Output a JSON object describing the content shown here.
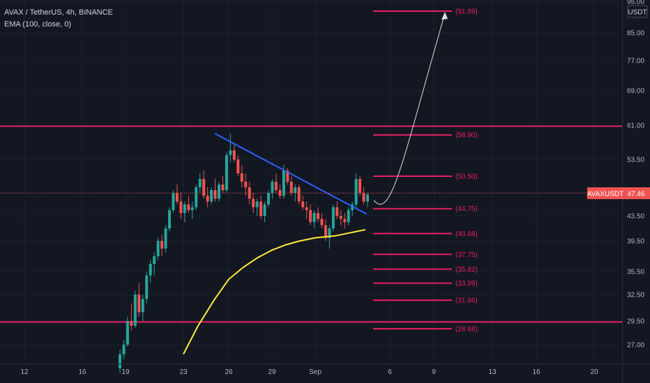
{
  "header": {
    "symbol_line": "AVAX / TetherUS, 4h, BINANCE",
    "indicator_line": "EMA (100, close, 0)"
  },
  "currency": "USDT",
  "colors": {
    "background": "#131722",
    "up": "#26a69a",
    "down": "#ef5350",
    "level": "#e91e63",
    "ema": "#ffeb3b",
    "trendline": "#2962ff",
    "text": "#b2b5be"
  },
  "chart_data": {
    "type": "candlestick",
    "symbol": "AVAXUSDT",
    "timeframe": "4h",
    "exchange": "BINANCE",
    "y_axis_ticks": [
      "95.00",
      "85.00",
      "77.00",
      "69.00",
      "61.00",
      "53.50",
      "47.50",
      "43.50",
      "39.50",
      "35.50",
      "32.50",
      "29.50",
      "27.00"
    ],
    "y_axis_values": [
      95,
      85,
      77,
      69,
      61,
      53.5,
      47.5,
      43.5,
      39.5,
      35.5,
      32.5,
      29.5,
      27
    ],
    "x_axis_ticks": [
      "12",
      "16",
      "19",
      "23",
      "26",
      "29",
      "Sep",
      "6",
      "9",
      "13",
      "16",
      "20"
    ],
    "last_price": {
      "label": "AVAXUSDT",
      "value": "47.46"
    },
    "horizontal_lines": [
      60.8,
      29.4
    ],
    "fib_levels": [
      {
        "value": 91.89,
        "label": "(91.89)"
      },
      {
        "value": 58.9,
        "label": "(58.90)"
      },
      {
        "value": 50.5,
        "label": "(50.50)"
      },
      {
        "value": 44.75,
        "label": "(44.75)"
      },
      {
        "value": 40.68,
        "label": "(40.68)"
      },
      {
        "value": 37.75,
        "label": "(37.75)"
      },
      {
        "value": 35.82,
        "label": "(35.82)"
      },
      {
        "value": 33.99,
        "label": "(33.99)"
      },
      {
        "value": 31.86,
        "label": "(31.86)"
      },
      {
        "value": 28.68,
        "label": "(28.68)"
      }
    ],
    "ema": {
      "name": "EMA (100, close, 0)",
      "points": [
        [
          "Aug 23",
          26
        ],
        [
          "Aug 24",
          29
        ],
        [
          "Aug 25",
          32
        ],
        [
          "Aug 26",
          34.5
        ],
        [
          "Aug 27",
          36
        ],
        [
          "Aug 28",
          37.3
        ],
        [
          "Aug 29",
          38.3
        ],
        [
          "Aug 30",
          39
        ],
        [
          "Aug 31",
          39.5
        ],
        [
          "Sep 1",
          40
        ],
        [
          "Sep 2",
          40.3
        ],
        [
          "Sep 3",
          41.3
        ]
      ]
    },
    "trendline": {
      "start": [
        "Aug 25",
        59.2
      ],
      "end": [
        "Sep 3",
        43.8
      ]
    },
    "projection": {
      "start": [
        "Sep 3",
        46.2
      ],
      "end": [
        "Sep 10",
        91.2
      ]
    },
    "candles_ohlc": [
      [
        24.5,
        26.5,
        24,
        26
      ],
      [
        26,
        27.5,
        25.5,
        27
      ],
      [
        27,
        30,
        26.8,
        29.5
      ],
      [
        29.5,
        31.5,
        28.5,
        29
      ],
      [
        29,
        33,
        28.8,
        32.5
      ],
      [
        32.5,
        34,
        30,
        30.5
      ],
      [
        30.5,
        32.5,
        29.5,
        32
      ],
      [
        32,
        35.5,
        31.5,
        35
      ],
      [
        35,
        37,
        34,
        36.5
      ],
      [
        36.5,
        38,
        35,
        37.5
      ],
      [
        37.5,
        40,
        37,
        39.5
      ],
      [
        39.5,
        40.5,
        37.5,
        38.5
      ],
      [
        38.5,
        42,
        38,
        41.5
      ],
      [
        41.5,
        45,
        41,
        44.5
      ],
      [
        44.5,
        48,
        44,
        47.5
      ],
      [
        47.5,
        49,
        45.5,
        46
      ],
      [
        46,
        47.5,
        43,
        44
      ],
      [
        44,
        46,
        42.5,
        45.5
      ],
      [
        45.5,
        47,
        44,
        44.5
      ],
      [
        44.5,
        46,
        43,
        45
      ],
      [
        45,
        49,
        44.5,
        48.5
      ],
      [
        48.5,
        51,
        47.5,
        50
      ],
      [
        50,
        51.5,
        46.5,
        47
      ],
      [
        47,
        48.5,
        45,
        46
      ],
      [
        46,
        48.5,
        45.5,
        48
      ],
      [
        48,
        50,
        46,
        46.5
      ],
      [
        46.5,
        49.5,
        46,
        49
      ],
      [
        49,
        50.5,
        47.5,
        48
      ],
      [
        48,
        55,
        47.5,
        54.5
      ],
      [
        54.5,
        59.2,
        53,
        55.5
      ],
      [
        55.5,
        57,
        53,
        53.5
      ],
      [
        53.5,
        54.5,
        50.5,
        51
      ],
      [
        51,
        52.5,
        48.5,
        49.5
      ],
      [
        49.5,
        51,
        47,
        48.5
      ],
      [
        48.5,
        49.5,
        45.5,
        46.5
      ],
      [
        46.5,
        47.5,
        44,
        45
      ],
      [
        45,
        46.5,
        43.5,
        46
      ],
      [
        46,
        47,
        43,
        43.5
      ],
      [
        43.5,
        46,
        42.5,
        45.5
      ],
      [
        45.5,
        48,
        45,
        47.5
      ],
      [
        47.5,
        50,
        46.5,
        49.5
      ],
      [
        49.5,
        51,
        47.5,
        48
      ],
      [
        48,
        49,
        46.5,
        47
      ],
      [
        47,
        52.5,
        46.5,
        51.5
      ],
      [
        51.5,
        52,
        49,
        49.5
      ],
      [
        49.5,
        50.5,
        47,
        47.5
      ],
      [
        47.5,
        49,
        46,
        48.5
      ],
      [
        48.5,
        49,
        45.5,
        46
      ],
      [
        46,
        47,
        44.5,
        45
      ],
      [
        45,
        46,
        43,
        44.5
      ],
      [
        44.5,
        45.5,
        42,
        42.5
      ],
      [
        42.5,
        44.5,
        41.5,
        44
      ],
      [
        44,
        45,
        42.5,
        43
      ],
      [
        43,
        44,
        41.5,
        42
      ],
      [
        42,
        43,
        39.5,
        40
      ],
      [
        40,
        42,
        38.5,
        41.5
      ],
      [
        41.5,
        45.5,
        41,
        45
      ],
      [
        45,
        46,
        43,
        43.5
      ],
      [
        43.5,
        44.5,
        42,
        43
      ],
      [
        43,
        44,
        41.5,
        42.5
      ],
      [
        42.5,
        45,
        42,
        44.5
      ],
      [
        44.5,
        46,
        43.5,
        45.5
      ],
      [
        45.5,
        51,
        45,
        50
      ],
      [
        50,
        50.5,
        47,
        47.5
      ],
      [
        47.5,
        48.5,
        45.5,
        46
      ],
      [
        46,
        47.5,
        45,
        47.2
      ]
    ]
  }
}
